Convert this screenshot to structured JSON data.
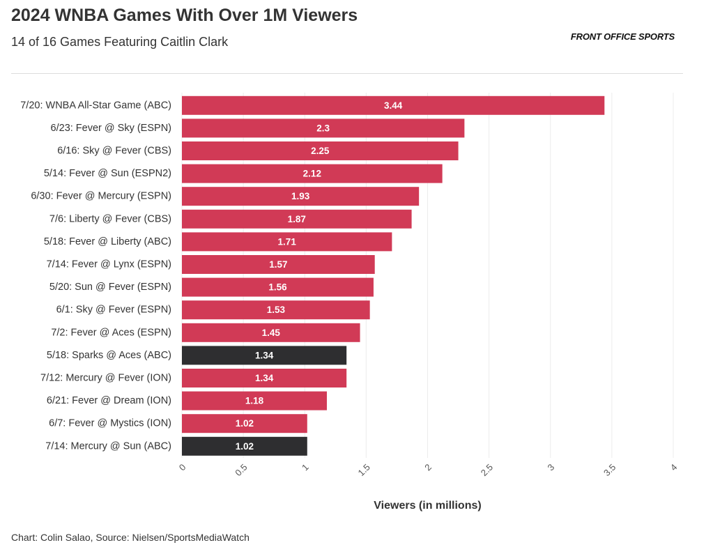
{
  "header": {
    "title": "2024 WNBA Games With Over 1M Viewers",
    "subtitle": "14 of 16 Games Featuring Caitlin Clark",
    "brand": "FRONT OFFICE SPORTS"
  },
  "footer": {
    "credit": "Chart: Colin Salao, Source: Nielsen/SportsMediaWatch"
  },
  "colors": {
    "highlight": "#d13a56",
    "other": "#2e2e30",
    "grid": "#ececec"
  },
  "chart_data": {
    "type": "bar",
    "orientation": "horizontal",
    "title": "2024 WNBA Games With Over 1M Viewers",
    "subtitle": "14 of 16 Games Featuring Caitlin Clark",
    "xlabel": "Viewers (in millions)",
    "ylabel": "",
    "xlim": [
      0,
      4
    ],
    "xticks": [
      "0",
      "0.5",
      "1",
      "1.5",
      "2",
      "2.5",
      "3",
      "3.5",
      "4"
    ],
    "grid": true,
    "categories": [
      "7/20: WNBA All-Star Game (ABC)",
      "6/23: Fever @ Sky (ESPN)",
      "6/16: Sky @ Fever (CBS)",
      "5/14: Fever @ Sun (ESPN2)",
      "6/30: Fever @ Mercury (ESPN)",
      "7/6: Liberty @ Fever (CBS)",
      "5/18: Fever @ Liberty (ABC)",
      "7/14: Fever @ Lynx (ESPN)",
      "5/20: Sun @ Fever (ESPN)",
      "6/1: Sky @ Fever (ESPN)",
      "7/2: Fever @ Aces (ESPN)",
      "5/18: Sparks @ Aces (ABC)",
      "7/12: Mercury @ Fever (ION)",
      "6/21: Fever @ Dream (ION)",
      "6/7: Fever @ Mystics (ION)",
      "7/14: Mercury @ Sun (ABC)"
    ],
    "values": [
      3.44,
      2.3,
      2.25,
      2.12,
      1.93,
      1.87,
      1.71,
      1.57,
      1.56,
      1.53,
      1.45,
      1.34,
      1.34,
      1.18,
      1.02,
      1.02
    ],
    "value_labels": [
      "3.44",
      "2.3",
      "2.25",
      "2.12",
      "1.93",
      "1.87",
      "1.71",
      "1.57",
      "1.56",
      "1.53",
      "1.45",
      "1.34",
      "1.34",
      "1.18",
      "1.02",
      "1.02"
    ],
    "featuring_caitlin_clark": [
      true,
      true,
      true,
      true,
      true,
      true,
      true,
      true,
      true,
      true,
      true,
      false,
      true,
      true,
      true,
      false
    ]
  }
}
